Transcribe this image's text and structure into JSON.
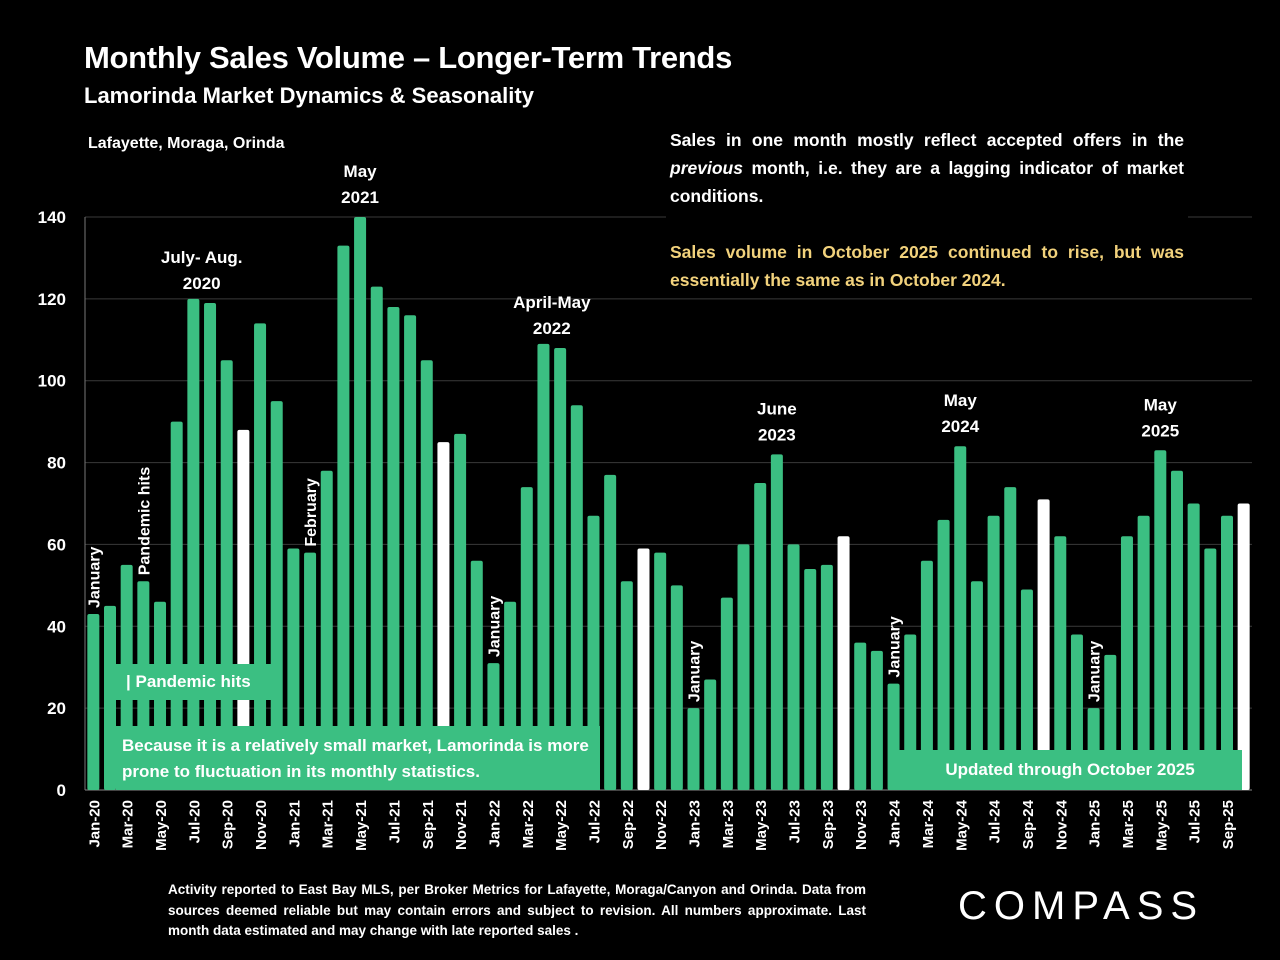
{
  "title": "Monthly Sales Volume – Longer-Term Trends",
  "subtitle": "Lamorinda Market Dynamics & Seasonality",
  "area_label": "Lafayette, Moraga, Orinda",
  "note": {
    "paragraph1_pre": "Sales in one month mostly reflect accepted offers in the ",
    "paragraph1_em": "previous",
    "paragraph1_post": " month, i.e. they are a lagging indicator of market conditions.",
    "paragraph2": "Sales volume in October 2025 continued to rise, but was essentially the same as in October 2024."
  },
  "callouts": {
    "pandemic": "| Pandemic hits",
    "fluctuation": "Because it is a relatively small market, Lamorinda is more prone to fluctuation in its monthly statistics.",
    "updated": "Updated through October 2025"
  },
  "footnote": "Activity reported to East Bay MLS, per Broker Metrics for Lafayette, Moraga/Canyon and Orinda. Data from sources deemed reliable but may contain errors and subject to revision. All numbers approximate. Last month data estimated and may change with late reported sales .",
  "logo": "COMPASS",
  "colors": {
    "bar": "#3bbf82",
    "highlight": "#ffffff",
    "accent": "#f2d27c",
    "background": "#000000"
  },
  "chart_data": {
    "type": "bar",
    "title": "Monthly Sales Volume – Longer-Term Trends",
    "ylim": [
      0,
      140
    ],
    "yticks": [
      0,
      20,
      40,
      60,
      80,
      100,
      120,
      140
    ],
    "grid": true,
    "categories": [
      "Jan-20",
      "Feb-20",
      "Mar-20",
      "Apr-20",
      "May-20",
      "Jun-20",
      "Jul-20",
      "Aug-20",
      "Sep-20",
      "Oct-20",
      "Nov-20",
      "Dec-20",
      "Jan-21",
      "Feb-21",
      "Mar-21",
      "Apr-21",
      "May-21",
      "Jun-21",
      "Jul-21",
      "Aug-21",
      "Sep-21",
      "Oct-21",
      "Nov-21",
      "Dec-21",
      "Jan-22",
      "Feb-22",
      "Mar-22",
      "Apr-22",
      "May-22",
      "Jun-22",
      "Jul-22",
      "Aug-22",
      "Sep-22",
      "Oct-22",
      "Nov-22",
      "Dec-22",
      "Jan-23",
      "Feb-23",
      "Mar-23",
      "Apr-23",
      "May-23",
      "Jun-23",
      "Jul-23",
      "Aug-23",
      "Sep-23",
      "Oct-23",
      "Nov-23",
      "Dec-23",
      "Jan-24",
      "Feb-24",
      "Mar-24",
      "Apr-24",
      "May-24",
      "Jun-24",
      "Jul-24",
      "Aug-24",
      "Sep-24",
      "Oct-24",
      "Nov-24",
      "Dec-24",
      "Jan-25",
      "Feb-25",
      "Mar-25",
      "Apr-25",
      "May-25",
      "Jun-25",
      "Jul-25",
      "Aug-25",
      "Sep-25",
      "Oct-25"
    ],
    "values": [
      43,
      45,
      55,
      51,
      46,
      90,
      120,
      119,
      105,
      88,
      114,
      95,
      59,
      58,
      78,
      133,
      140,
      123,
      118,
      116,
      105,
      85,
      87,
      56,
      31,
      46,
      74,
      109,
      108,
      94,
      67,
      77,
      51,
      59,
      58,
      50,
      20,
      27,
      47,
      60,
      75,
      82,
      60,
      54,
      55,
      62,
      36,
      34,
      26,
      38,
      56,
      66,
      84,
      51,
      67,
      74,
      49,
      71,
      62,
      38,
      20,
      33,
      62,
      67,
      83,
      78,
      70,
      59,
      67,
      70
    ],
    "highlight_indices": [
      9,
      21,
      33,
      45,
      57,
      69
    ],
    "x_tick_labels": [
      "Jan-20",
      "Mar-20",
      "May-20",
      "Jul-20",
      "Sep-20",
      "Nov-20",
      "Jan-21",
      "Mar-21",
      "May-21",
      "Jul-21",
      "Sep-21",
      "Nov-21",
      "Jan-22",
      "Mar-22",
      "May-22",
      "Jul-22",
      "Sep-22",
      "Nov-22",
      "Jan-23",
      "Mar-23",
      "May-23",
      "Jul-23",
      "Sep-23",
      "Nov-23",
      "Jan-24",
      "Mar-24",
      "May-24",
      "Jul-24",
      "Sep-24",
      "Nov-24",
      "Jan-25",
      "Mar-25",
      "May-25",
      "Jul-25",
      "Sep-25"
    ],
    "annotations": [
      {
        "index": 0,
        "text": "January",
        "orientation": "vertical"
      },
      {
        "index": 3,
        "text": "Pandemic hits",
        "orientation": "vertical"
      },
      {
        "index": 13,
        "text": "February",
        "orientation": "vertical"
      },
      {
        "index": 24,
        "text": "January",
        "orientation": "vertical"
      },
      {
        "index": 36,
        "text": "January",
        "orientation": "vertical"
      },
      {
        "index": 48,
        "text": "January",
        "orientation": "vertical"
      },
      {
        "index": 60,
        "text": "January",
        "orientation": "vertical"
      },
      {
        "index": 6.5,
        "lines": [
          "July- Aug.",
          "2020"
        ],
        "orientation": "horizontal"
      },
      {
        "index": 16,
        "lines": [
          "May",
          "2021"
        ],
        "orientation": "horizontal"
      },
      {
        "index": 27.5,
        "lines": [
          "April-May",
          "2022"
        ],
        "orientation": "horizontal"
      },
      {
        "index": 41,
        "lines": [
          "June",
          "2023"
        ],
        "orientation": "horizontal"
      },
      {
        "index": 52,
        "lines": [
          "May",
          "2024"
        ],
        "orientation": "horizontal"
      },
      {
        "index": 64,
        "lines": [
          "May",
          "2025"
        ],
        "orientation": "horizontal"
      }
    ]
  }
}
